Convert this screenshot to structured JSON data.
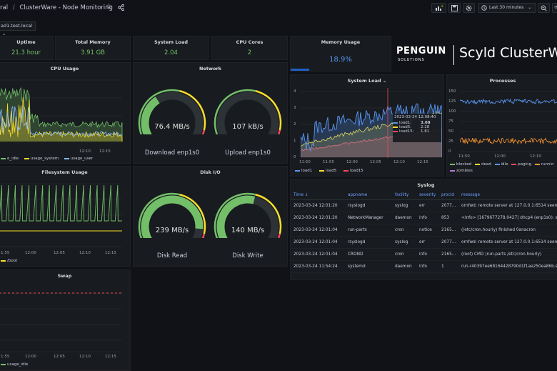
{
  "topbar": {
    "breadcrumb_prefix": "ral",
    "separator": "/",
    "title": "ClusterWare - Node Monitoring",
    "time_range": "Last 30 minutes"
  },
  "variable": {
    "node": "ad1.test.local"
  },
  "stats": {
    "uptime": {
      "title": "Uptime",
      "value": "21.3 hour"
    },
    "total_memory": {
      "title": "Total Memory",
      "value": "3.91 GB"
    },
    "system_load": {
      "title": "System Load",
      "value": "2.04"
    },
    "cpu_cores": {
      "title": "CPU Cores",
      "value": "2"
    },
    "memory_usage": {
      "title": "Memory Usage",
      "value": "18.9%",
      "level": 0.189
    }
  },
  "branding": {
    "logo_top": "PENGUIN",
    "logo_bottom": "SOLUTIONS",
    "product": "Scyld ClusterW"
  },
  "panels": {
    "cpu_usage": {
      "title": "CPU Usage",
      "xticks": [
        "12:10",
        "12:15"
      ],
      "legend": [
        "e_idle",
        "usage_system",
        "usage_user"
      ]
    },
    "network": {
      "title": "Network",
      "download": {
        "value": "76.4 MB/s",
        "label": "Download enp1s0",
        "level": 0.38
      },
      "upload": {
        "value": "107 kB/s",
        "label": "Upload enp1s0",
        "level": 0.02
      }
    },
    "system_load": {
      "title": "System Load",
      "yticks": [
        "4",
        "3",
        "2",
        "1",
        "0"
      ],
      "xticks": [
        "11:50",
        "11:55",
        "12:00",
        "12:05",
        "12:10",
        "12:15"
      ],
      "legend": [
        "load1",
        "load5",
        "load15"
      ],
      "tooltip": {
        "time": "2023-03-24 12:08:40",
        "rows": [
          {
            "name": "load1:",
            "value": "3.08"
          },
          {
            "name": "load5:",
            "value": "2.28"
          },
          {
            "name": "load15:",
            "value": "1.81"
          }
        ]
      }
    },
    "processes": {
      "title": "Processes",
      "yticks": [
        "150",
        "125",
        "100",
        "75",
        "50",
        "25",
        "0"
      ],
      "xticks": [
        "11:50",
        "12:00",
        "12:10"
      ],
      "legend": [
        "blocked",
        "dead",
        "idle",
        "paging",
        "runnin",
        "zombies"
      ]
    },
    "filesystem": {
      "title": "Filesystem Usage",
      "xticks": [
        "1:55",
        "12:00",
        "12:05",
        "12:10",
        "12:15"
      ],
      "legend": [
        "/boot"
      ]
    },
    "disk_io": {
      "title": "Disk I/O",
      "read": {
        "value": "239 MB/s",
        "label": "Disk Read",
        "level": 0.85
      },
      "write": {
        "value": "140 MB/s",
        "label": "Disk Write",
        "level": 0.55
      }
    },
    "swap": {
      "title": "Swap",
      "xticks": [
        "1:55",
        "12:00",
        "12:05",
        "12:10",
        "12:15"
      ],
      "legend": [
        "usage_idle"
      ]
    },
    "syslog": {
      "title": "Syslog",
      "columns": [
        "Time",
        "appname",
        "facility",
        "severity",
        "procid",
        "message"
      ],
      "rows": [
        [
          "2023-03-24 12:01:20",
          "rsyslogd",
          "syslog",
          "err",
          "2077…",
          "ornfwd: remote server at 127.0.0.1:6514 seem"
        ],
        [
          "2023-03-24 12:01:20",
          "NetworkManager",
          "daemon",
          "info",
          "853",
          "<info> [1679677278.0427] dhcp4 (enp1s0): st"
        ],
        [
          "2023-03-24 12:01:04",
          "run-parts",
          "cron",
          "notice",
          "2165…",
          "(/etc/cron.hourly) finished 0anacron"
        ],
        [
          "2023-03-24 12:01:04",
          "rsyslogd",
          "syslog",
          "err",
          "2077…",
          "ornfwd: remote server at 127.0.0.1:6514 seem"
        ],
        [
          "2023-03-24 12:01:04",
          "CROND",
          "cron",
          "info",
          "2165…",
          "(root) CMD (run-parts /etc/cron.hourly)"
        ],
        [
          "2023-03-24 11:54:24",
          "systemd",
          "daemon",
          "info",
          "1",
          "run-r40397ee68164428790d1f1ae250ea86b.s"
        ]
      ]
    }
  },
  "colors": {
    "green": "#73bf69",
    "yellow": "#fade2a",
    "red": "#f2495c",
    "blue": "#5794f2",
    "orange": "#ff9830",
    "purple": "#b877d9",
    "teal": "#8ab8ff"
  }
}
